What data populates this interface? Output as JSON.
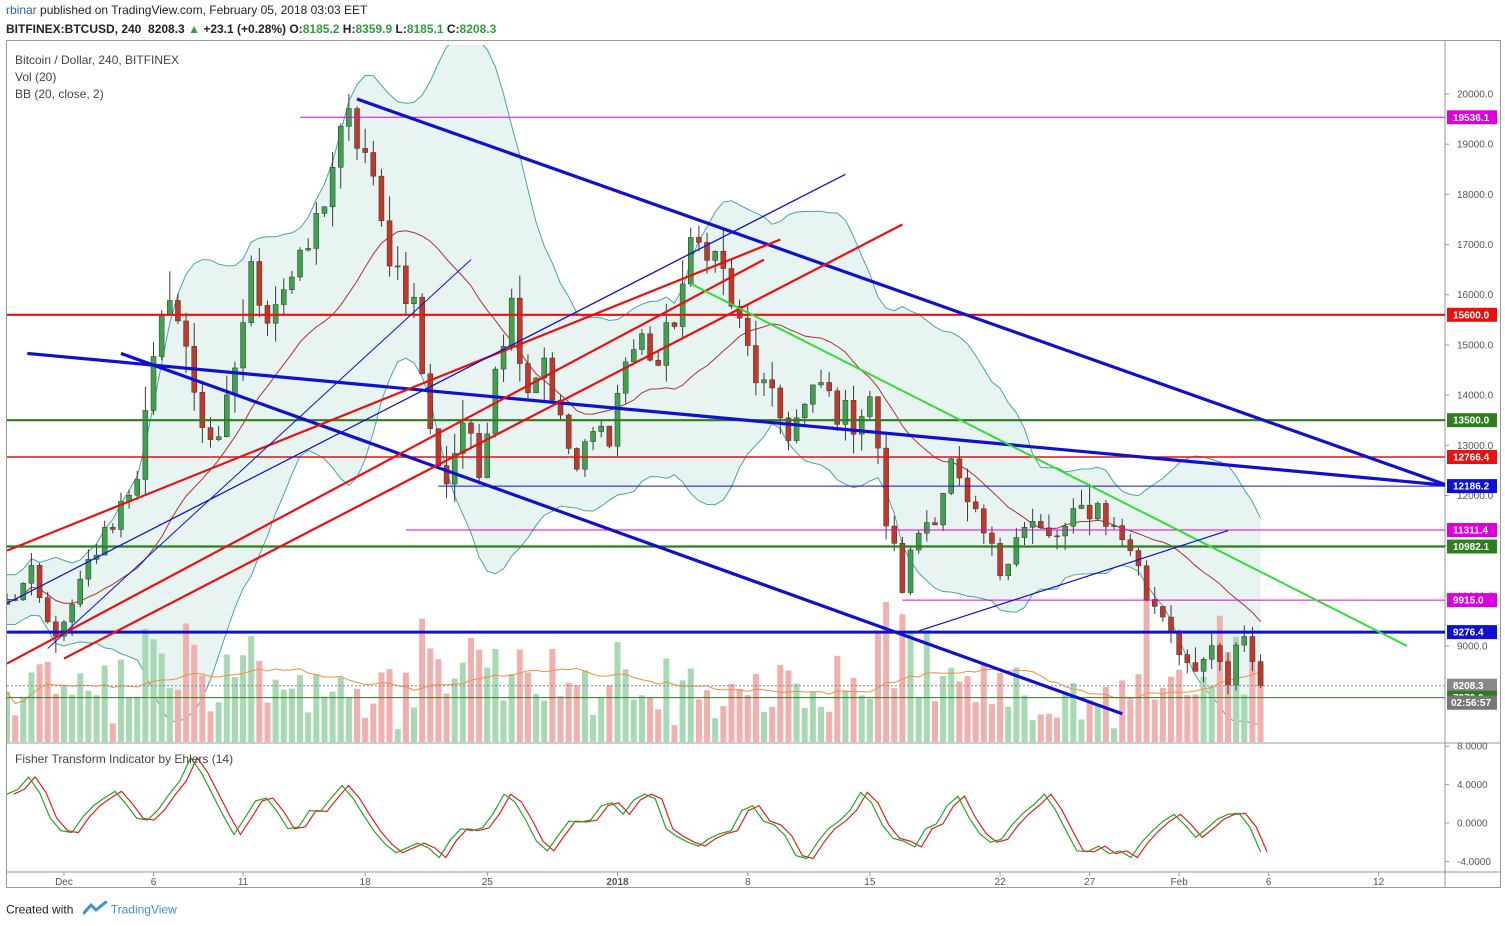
{
  "header": {
    "author": "rbinar",
    "published": "published on TradingView.com, February 05, 2018 03:03 EET",
    "symbol": "BITFINEX:BTCUSD, 240",
    "last": "8208.3",
    "change": "+23.1 (+0.28%)",
    "o_label": "O:",
    "o_value": "8185.2",
    "h_label": "H:",
    "h_value": "8359.9",
    "l_label": "L:",
    "l_value": "8185.1",
    "c_label": "C:",
    "c_value": "8208.3"
  },
  "legend": {
    "title": "Bitcoin / Dollar, 240, BITFINEX",
    "vol": "Vol (20)",
    "bb": "BB (20, close, 2)",
    "fisher": "Fisher Transform Indicator by Ehlers (14)"
  },
  "footer": {
    "created": "Created with",
    "brand": "TradingView"
  },
  "colors": {
    "up": "#3fa34d",
    "down": "#c0392b",
    "blue": "#1010d0",
    "red": "#e81010",
    "green_dark": "#2e7d1e",
    "green_light": "#33dd33",
    "magenta": "#dd00dd",
    "bb_band": "#4aa3a3",
    "bb_fill": "#e6f3f1"
  },
  "chart_data": [
    {
      "type": "candlestick",
      "title": "Bitcoin / Dollar, 240, BITFINEX",
      "ylim": [
        7650,
        20850
      ],
      "y_ticks": [
        9000,
        10000,
        11000,
        12000,
        13000,
        14000,
        15000,
        16000,
        17000,
        18000,
        19000,
        20000
      ],
      "y_tick_labels": [
        "9000.0",
        "10000.0",
        "11000.0",
        "12000.0",
        "13000.0",
        "14000.0",
        "15000.0",
        "16000.0",
        "17000.0",
        "18000.0",
        "19000.0",
        "20000.0"
      ],
      "x_ticks": [
        "Dec",
        "6",
        "11",
        "18",
        "25",
        "2018",
        "8",
        "15",
        "22",
        "27",
        "Feb",
        "6",
        "12"
      ],
      "anchors": [
        {
          "t": 0,
          "v": 9850
        },
        {
          "t": 3,
          "v": 10350
        },
        {
          "t": 5,
          "v": 9400
        },
        {
          "t": 7,
          "v": 9300
        },
        {
          "t": 10,
          "v": 10600
        },
        {
          "t": 13,
          "v": 11500
        },
        {
          "t": 16,
          "v": 12500
        },
        {
          "t": 18,
          "v": 14500
        },
        {
          "t": 20,
          "v": 16200
        },
        {
          "t": 22,
          "v": 14800
        },
        {
          "t": 24,
          "v": 13500
        },
        {
          "t": 26,
          "v": 12900
        },
        {
          "t": 28,
          "v": 14600
        },
        {
          "t": 30,
          "v": 16400
        },
        {
          "t": 32,
          "v": 15700
        },
        {
          "t": 34,
          "v": 16200
        },
        {
          "t": 36,
          "v": 16500
        },
        {
          "t": 38,
          "v": 17400
        },
        {
          "t": 40,
          "v": 18600
        },
        {
          "t": 42,
          "v": 19400
        },
        {
          "t": 44,
          "v": 18800
        },
        {
          "t": 46,
          "v": 17300
        },
        {
          "t": 48,
          "v": 16500
        },
        {
          "t": 50,
          "v": 15800
        },
        {
          "t": 52,
          "v": 13200
        },
        {
          "t": 54,
          "v": 12300
        },
        {
          "t": 56,
          "v": 13500
        },
        {
          "t": 58,
          "v": 12400
        },
        {
          "t": 60,
          "v": 14700
        },
        {
          "t": 62,
          "v": 15800
        },
        {
          "t": 64,
          "v": 14200
        },
        {
          "t": 66,
          "v": 14800
        },
        {
          "t": 68,
          "v": 13400
        },
        {
          "t": 70,
          "v": 12500
        },
        {
          "t": 72,
          "v": 13200
        },
        {
          "t": 74,
          "v": 13300
        },
        {
          "t": 76,
          "v": 14700
        },
        {
          "t": 78,
          "v": 15100
        },
        {
          "t": 80,
          "v": 14600
        },
        {
          "t": 82,
          "v": 15600
        },
        {
          "t": 84,
          "v": 16800
        },
        {
          "t": 86,
          "v": 17100
        },
        {
          "t": 88,
          "v": 16400
        },
        {
          "t": 90,
          "v": 15300
        },
        {
          "t": 92,
          "v": 14400
        },
        {
          "t": 94,
          "v": 13800
        },
        {
          "t": 96,
          "v": 13300
        },
        {
          "t": 98,
          "v": 13700
        },
        {
          "t": 100,
          "v": 14200
        },
        {
          "t": 102,
          "v": 13700
        },
        {
          "t": 104,
          "v": 13500
        },
        {
          "t": 106,
          "v": 14000
        },
        {
          "t": 108,
          "v": 11500
        },
        {
          "t": 110,
          "v": 10200
        },
        {
          "t": 112,
          "v": 11300
        },
        {
          "t": 114,
          "v": 11700
        },
        {
          "t": 116,
          "v": 12600
        },
        {
          "t": 118,
          "v": 11700
        },
        {
          "t": 120,
          "v": 11200
        },
        {
          "t": 122,
          "v": 10500
        },
        {
          "t": 124,
          "v": 11300
        },
        {
          "t": 126,
          "v": 11400
        },
        {
          "t": 128,
          "v": 11100
        },
        {
          "t": 130,
          "v": 11300
        },
        {
          "t": 132,
          "v": 11700
        },
        {
          "t": 134,
          "v": 11800
        },
        {
          "t": 136,
          "v": 11300
        },
        {
          "t": 138,
          "v": 11000
        },
        {
          "t": 140,
          "v": 10000
        },
        {
          "t": 142,
          "v": 9700
        },
        {
          "t": 144,
          "v": 9000
        },
        {
          "t": 146,
          "v": 8300
        },
        {
          "t": 148,
          "v": 9000
        },
        {
          "t": 150,
          "v": 8100
        },
        {
          "t": 151,
          "v": 9100
        },
        {
          "t": 152,
          "v": 9200
        },
        {
          "t": 154,
          "v": 8200
        }
      ],
      "last_price": 8208.3,
      "price_tags": [
        {
          "value": 19536.1,
          "label": "19536.1",
          "color": "#dd00dd"
        },
        {
          "value": 15600.0,
          "label": "15600.0",
          "color": "#e81010"
        },
        {
          "value": 13500.0,
          "label": "13500.0",
          "color": "#2e7d1e"
        },
        {
          "value": 12766.4,
          "label": "12766.4",
          "color": "#e81010"
        },
        {
          "value": 12186.2,
          "label": "12186.2",
          "color": "#1010d0"
        },
        {
          "value": 11311.4,
          "label": "11311.4",
          "color": "#dd00dd"
        },
        {
          "value": 10982.1,
          "label": "10982.1",
          "color": "#2e7d1e"
        },
        {
          "value": 9915.0,
          "label": "9915.0",
          "color": "#dd00dd"
        },
        {
          "value": 9276.4,
          "label": "9276.4",
          "color": "#1010d0"
        },
        {
          "value": 8208.3,
          "label": "8208.3",
          "color": "#888888"
        },
        {
          "value": 7970.0,
          "label": "7970.0",
          "color": "#2e7d1e"
        }
      ],
      "countdown": "02:56:57",
      "horizontal_levels": [
        {
          "value": 19536.1,
          "color": "#dd00dd",
          "width": 1,
          "from": 36
        },
        {
          "value": 15600.0,
          "color": "#e81010",
          "width": 2.2,
          "from": 0
        },
        {
          "value": 13500.0,
          "color": "#2e7d1e",
          "width": 2.2,
          "from": 0
        },
        {
          "value": 12766.4,
          "color": "#e81010",
          "width": 1.5,
          "from": 0
        },
        {
          "value": 12186.2,
          "color": "#1010d0",
          "width": 1,
          "from": 53
        },
        {
          "value": 11311.4,
          "color": "#dd00dd",
          "width": 1,
          "from": 49
        },
        {
          "value": 10982.1,
          "color": "#2e7d1e",
          "width": 2.2,
          "from": 0
        },
        {
          "value": 9915.0,
          "color": "#dd00dd",
          "width": 1,
          "from": 110
        },
        {
          "value": 9276.4,
          "color": "#1010d0",
          "width": 3,
          "from": 0
        },
        {
          "value": 7970.0,
          "color": "#2e7d1e",
          "width": 1,
          "from": 0
        }
      ],
      "trendlines": [
        {
          "t1": 2.5,
          "v1": 14830,
          "t2": 177,
          "v2": 12200,
          "color": "#1010d0",
          "width": 3.2
        },
        {
          "t1": 43,
          "v1": 19900,
          "t2": 177,
          "v2": 12200,
          "color": "#1010d0",
          "width": 3.2
        },
        {
          "t1": 14,
          "v1": 14830,
          "t2": 137,
          "v2": 7650,
          "color": "#1010d0",
          "width": 3.2
        },
        {
          "t1": 0,
          "v1": 8650,
          "t2": 93,
          "v2": 16700,
          "color": "#e81010",
          "width": 2.2
        },
        {
          "t1": 0,
          "v1": 10900,
          "t2": 95,
          "v2": 17100,
          "color": "#e81010",
          "width": 2.2
        },
        {
          "t1": 7,
          "v1": 8750,
          "t2": 110,
          "v2": 17400,
          "color": "#e81010",
          "width": 2.2
        },
        {
          "t1": 0,
          "v1": 9850,
          "t2": 103,
          "v2": 18400,
          "color": "#1010d0",
          "width": 1.3
        },
        {
          "t1": 5,
          "v1": 8950,
          "t2": 57,
          "v2": 16700,
          "color": "#1010d0",
          "width": 1
        },
        {
          "t1": 84,
          "v1": 16220,
          "t2": 172,
          "v2": 9000,
          "color": "#33dd33",
          "width": 2
        },
        {
          "t1": 112,
          "v1": 9300,
          "t2": 150,
          "v2": 11300,
          "color": "#1010d0",
          "width": 1.2
        }
      ],
      "series": [
        {
          "name": "Vol (20)"
        },
        {
          "name": "BB (20, close, 2)"
        }
      ]
    },
    {
      "type": "line",
      "title": "Fisher Transform Indicator by Ehlers (14)",
      "ylim": [
        -5,
        8
      ],
      "y_ticks": [
        8,
        4,
        0,
        -4
      ],
      "y_tick_labels": [
        "8.0000",
        "4.0000",
        "0.0000",
        "-4.0000"
      ],
      "values": [
        3.0,
        3.5,
        4.8,
        3.2,
        0.5,
        -0.8,
        -1.0,
        0.6,
        1.8,
        2.6,
        3.3,
        2.0,
        0.5,
        0.3,
        1.4,
        3.0,
        4.4,
        6.8,
        5.2,
        3.0,
        0.8,
        -1.2,
        0.5,
        2.3,
        2.6,
        1.2,
        -0.6,
        -0.4,
        1.3,
        1.2,
        2.6,
        3.9,
        2.6,
        0.8,
        -0.9,
        -2.2,
        -3.1,
        -2.6,
        -2.1,
        -2.6,
        -3.6,
        -1.8,
        -0.6,
        -0.8,
        -0.5,
        1.0,
        3.0,
        2.2,
        0.3,
        -1.9,
        -2.9,
        -1.3,
        0.2,
        0.1,
        0.3,
        1.8,
        2.1,
        0.9,
        2.4,
        3.0,
        2.5,
        -0.6,
        -1.4,
        -2.0,
        -2.4,
        -1.6,
        -1.1,
        -0.8,
        1.3,
        1.8,
        0.2,
        -0.2,
        -1.3,
        -3.4,
        -3.7,
        -2.0,
        -0.6,
        0.2,
        1.3,
        3.2,
        2.1,
        -0.2,
        -1.6,
        -1.9,
        -2.5,
        -0.6,
        -0.1,
        1.8,
        2.8,
        0.6,
        -1.1,
        -2.0,
        -1.7,
        -0.2,
        1.0,
        1.9,
        3.0,
        1.4,
        -0.8,
        -2.9,
        -3.0,
        -2.4,
        -3.2,
        -2.9,
        -3.6,
        -2.0,
        -0.8,
        0.2,
        0.9,
        -0.2,
        -1.5,
        -0.6,
        0.4,
        0.9,
        1.0,
        -0.4,
        -3.0
      ]
    }
  ]
}
